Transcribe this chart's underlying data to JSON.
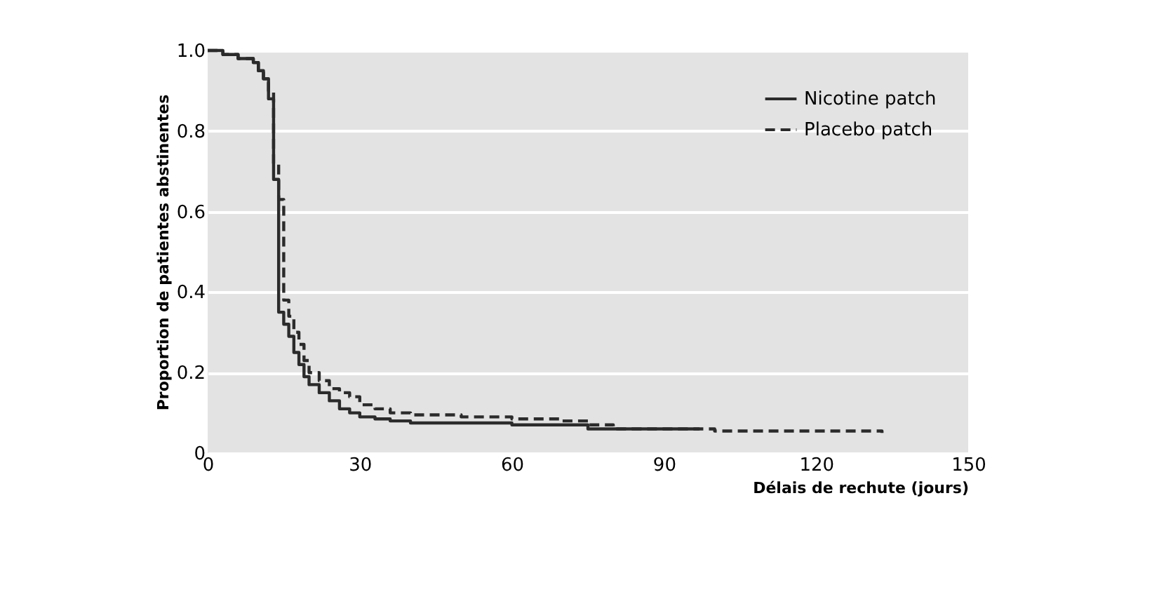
{
  "chart_data": {
    "type": "step",
    "xlabel": "Délais de rechute (jours)",
    "ylabel": "Proportion de patientes abstinentes",
    "xlim": [
      0,
      150
    ],
    "xticks": [
      0,
      30,
      60,
      90,
      120,
      150
    ],
    "ylim": [
      0,
      1.0
    ],
    "yticks": [
      0,
      0.2,
      0.4,
      0.6,
      0.8,
      {
        "value": 1.0,
        "label": "1.0"
      }
    ],
    "grid": "y",
    "legend": "top right",
    "series": [
      {
        "name": "Nicotine patch",
        "color": "#2b2b2b",
        "line_style": "solid",
        "x": [
          0,
          3,
          6,
          9,
          10,
          11,
          12,
          13,
          14,
          15,
          16,
          17,
          18,
          19,
          20,
          22,
          24,
          26,
          28,
          30,
          33,
          36,
          40,
          50,
          60,
          75,
          85,
          97
        ],
        "values": [
          1.0,
          0.99,
          0.98,
          0.97,
          0.95,
          0.93,
          0.88,
          0.68,
          0.35,
          0.32,
          0.29,
          0.25,
          0.22,
          0.19,
          0.17,
          0.15,
          0.13,
          0.11,
          0.1,
          0.09,
          0.085,
          0.08,
          0.075,
          0.075,
          0.07,
          0.06,
          0.06,
          0.06
        ]
      },
      {
        "name": "Placebo patch",
        "color": "#2b2b2b",
        "line_style": "dashed",
        "x": [
          0,
          3,
          6,
          9,
          10,
          11,
          12,
          13,
          14,
          15,
          16,
          17,
          18,
          19,
          20,
          22,
          24,
          26,
          28,
          30,
          33,
          36,
          40,
          50,
          60,
          70,
          75,
          80,
          100,
          133
        ],
        "values": [
          1.0,
          0.99,
          0.98,
          0.97,
          0.95,
          0.93,
          0.9,
          0.72,
          0.63,
          0.38,
          0.34,
          0.3,
          0.27,
          0.23,
          0.2,
          0.18,
          0.16,
          0.15,
          0.14,
          0.12,
          0.11,
          0.1,
          0.095,
          0.09,
          0.085,
          0.08,
          0.07,
          0.06,
          0.055,
          0.05
        ]
      }
    ]
  }
}
